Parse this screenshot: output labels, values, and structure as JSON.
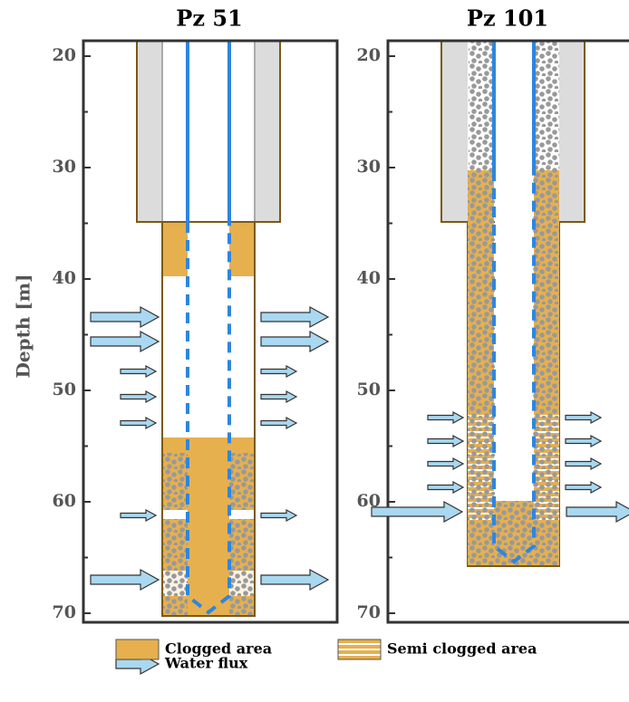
{
  "y_axis_label": "Depth [m]",
  "panels": [
    {
      "title": "Pz 51",
      "yticks": [
        20,
        30,
        40,
        50,
        60,
        70
      ]
    },
    {
      "title": "Pz 101",
      "yticks": [
        20,
        30,
        40,
        50,
        60,
        70
      ]
    }
  ],
  "legend": [
    "Clogged area",
    "Semi clogged area",
    "Water flux"
  ]
}
